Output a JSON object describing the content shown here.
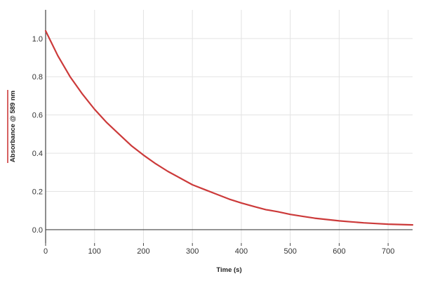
{
  "chart_data": {
    "type": "line",
    "title": "",
    "xlabel": "Time (s)",
    "ylabel": "Absorbance @ 589 nm",
    "xlim": [
      0,
      750
    ],
    "ylim": [
      -0.07,
      1.15
    ],
    "x_ticks": [
      0,
      100,
      200,
      300,
      400,
      500,
      600,
      700
    ],
    "y_ticks": [
      0.0,
      0.2,
      0.4,
      0.6,
      0.8,
      1.0
    ],
    "x_tick_labels": [
      "0",
      "100",
      "200",
      "300",
      "400",
      "500",
      "600",
      "700"
    ],
    "y_tick_labels": [
      "0.0",
      "0.2",
      "0.4",
      "0.6",
      "0.8",
      "1.0"
    ],
    "grid": true,
    "legend": "none",
    "series": [
      {
        "color": "#cc3a3a",
        "x": [
          0,
          25,
          50,
          75,
          100,
          125,
          150,
          175,
          200,
          225,
          250,
          275,
          300,
          325,
          350,
          375,
          400,
          425,
          450,
          475,
          500,
          525,
          550,
          575,
          600,
          625,
          650,
          675,
          700,
          725,
          750
        ],
        "y": [
          1.04,
          0.91,
          0.8,
          0.71,
          0.63,
          0.56,
          0.5,
          0.44,
          0.39,
          0.345,
          0.305,
          0.27,
          0.235,
          0.21,
          0.185,
          0.16,
          0.14,
          0.122,
          0.105,
          0.094,
          0.08,
          0.07,
          0.06,
          0.053,
          0.046,
          0.041,
          0.036,
          0.032,
          0.029,
          0.027,
          0.025
        ]
      }
    ]
  }
}
